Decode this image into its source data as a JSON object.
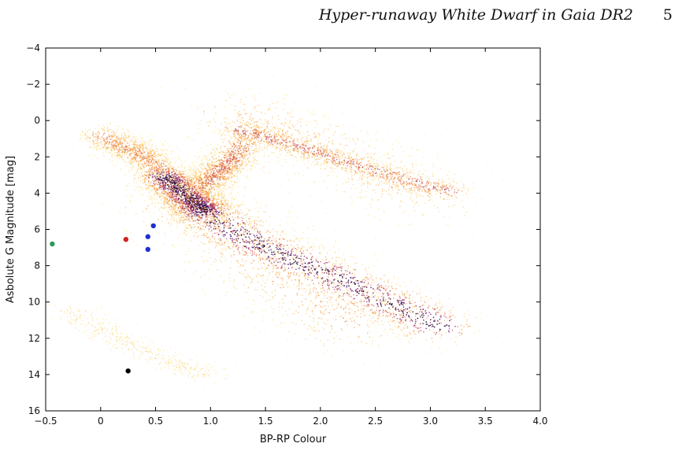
{
  "header": {
    "running_title": "Hyper-runaway White Dwarf in Gaia DR2",
    "page_number": "5"
  },
  "chart_data": {
    "type": "scatter",
    "title": "",
    "xlabel": "BP-RP Colour",
    "ylabel": "Asbolute G Magnitude [mag]",
    "xlim": [
      -0.5,
      4.0
    ],
    "ylim": [
      16,
      -4
    ],
    "y_inverted": true,
    "x_ticks": [
      -0.5,
      0,
      0.5,
      1.0,
      1.5,
      2.0,
      2.5,
      3.0,
      3.5,
      4.0
    ],
    "x_tick_labels": [
      "−0.5",
      "0",
      "0.5",
      "1.0",
      "1.5",
      "2.0",
      "2.5",
      "3.0",
      "3.5",
      "4.0"
    ],
    "y_ticks": [
      -4,
      -2,
      0,
      2,
      4,
      6,
      8,
      10,
      12,
      14,
      16
    ],
    "y_tick_labels": [
      "−4",
      "−2",
      "0",
      "2",
      "4",
      "6",
      "8",
      "10",
      "12",
      "14",
      "16"
    ],
    "grid": false,
    "background": {
      "kind": "density",
      "colormap": "inferno",
      "regions": [
        {
          "name": "main-sequence",
          "path": [
            [
              0.85,
              4.6
            ],
            [
              1.0,
              5.3
            ],
            [
              1.3,
              6.4
            ],
            [
              1.6,
              7.3
            ],
            [
              2.0,
              8.3
            ],
            [
              2.4,
              9.4
            ],
            [
              2.8,
              10.5
            ],
            [
              3.1,
              11.4
            ]
          ],
          "spread": 0.55,
          "peak": 1.0
        },
        {
          "name": "turnoff",
          "path": [
            [
              0.55,
              3.0
            ],
            [
              0.7,
              3.7
            ],
            [
              0.85,
              4.5
            ],
            [
              0.95,
              5.0
            ]
          ],
          "spread": 0.4,
          "peak": 1.0
        },
        {
          "name": "upper-ms",
          "path": [
            [
              0.0,
              0.8
            ],
            [
              0.2,
              1.4
            ],
            [
              0.4,
              2.0
            ],
            [
              0.55,
              2.8
            ]
          ],
          "spread": 0.35,
          "peak": 0.45
        },
        {
          "name": "subgiant-branch",
          "path": [
            [
              0.9,
              3.8
            ],
            [
              1.0,
              3.2
            ],
            [
              1.1,
              2.6
            ],
            [
              1.2,
              2.0
            ],
            [
              1.3,
              1.2
            ]
          ],
          "spread": 0.35,
          "peak": 0.55
        },
        {
          "name": "red-clump",
          "path": [
            [
              1.2,
              0.4
            ],
            [
              1.5,
              0.9
            ],
            [
              1.9,
              1.6
            ],
            [
              2.3,
              2.4
            ],
            [
              2.8,
              3.3
            ],
            [
              3.2,
              3.9
            ]
          ],
          "spread": 0.3,
          "peak": 0.6
        },
        {
          "name": "giant-halo",
          "path": [
            [
              1.2,
              -0.5
            ],
            [
              1.6,
              0.5
            ],
            [
              2.0,
              1.5
            ],
            [
              2.5,
              3.0
            ],
            [
              3.0,
              4.5
            ]
          ],
          "spread": 0.85,
          "peak": 0.3
        },
        {
          "name": "bulk-halo",
          "path": [
            [
              0.6,
              4.5
            ],
            [
              1.2,
              6.5
            ],
            [
              1.6,
              8.5
            ],
            [
              2.0,
              10.0
            ],
            [
              2.4,
              11.5
            ]
          ],
          "spread": 1.0,
          "peak": 0.35
        },
        {
          "name": "white-dwarf-sequence",
          "path": [
            [
              -0.3,
              10.4
            ],
            [
              0.0,
              11.5
            ],
            [
              0.3,
              12.5
            ],
            [
              0.7,
              13.4
            ],
            [
              1.0,
              14.0
            ]
          ],
          "spread": 0.28,
          "peak": 0.12
        }
      ]
    },
    "series": [
      {
        "color": "#2e9a5b",
        "points": [
          [
            -0.44,
            6.8
          ]
        ]
      },
      {
        "color": "#d42020",
        "points": [
          [
            0.23,
            6.55
          ]
        ]
      },
      {
        "color": "#1f2fd6",
        "points": [
          [
            0.48,
            5.8
          ],
          [
            0.43,
            6.4
          ],
          [
            0.43,
            7.1
          ]
        ]
      },
      {
        "color": "#000000",
        "points": [
          [
            0.25,
            13.8
          ]
        ]
      }
    ]
  }
}
